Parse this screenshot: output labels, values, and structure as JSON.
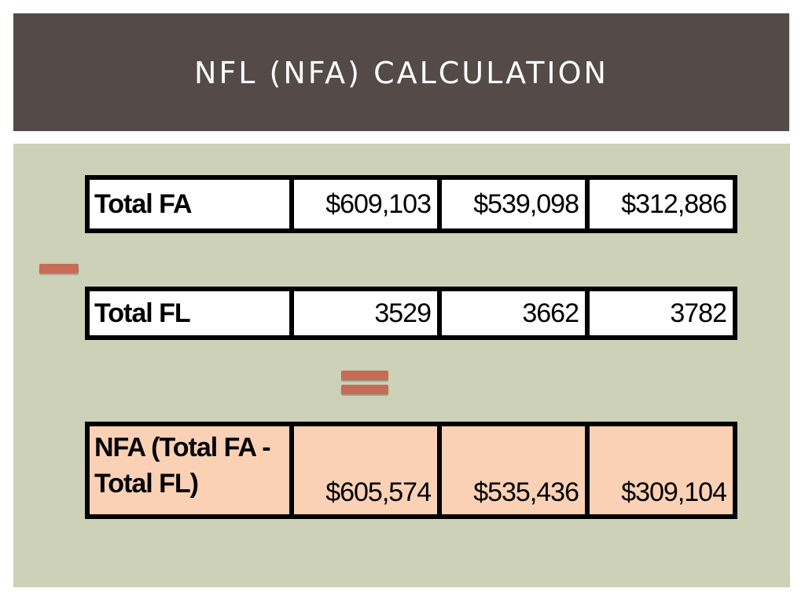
{
  "slide": {
    "title": "NFL (NFA) CALCULATION"
  },
  "rows": {
    "total_fa": {
      "label": "Total FA",
      "values": [
        "$609,103",
        "$539,098",
        "$312,886"
      ]
    },
    "total_fl": {
      "label": "Total FL",
      "values": [
        "3529",
        "3662",
        "3782"
      ]
    },
    "nfa": {
      "label_line1": "NFA (Total FA -",
      "label_line2": "Total FL)",
      "values": [
        "$605,574",
        "$535,436",
        "$309,104"
      ]
    }
  },
  "operators": {
    "minus": "minus-icon",
    "equals": "equals-icon"
  },
  "colors": {
    "title_bar": "#544a48",
    "content_bg": "#ccd1b8",
    "result_row": "#fad1b4",
    "operator": "#c76b55"
  }
}
